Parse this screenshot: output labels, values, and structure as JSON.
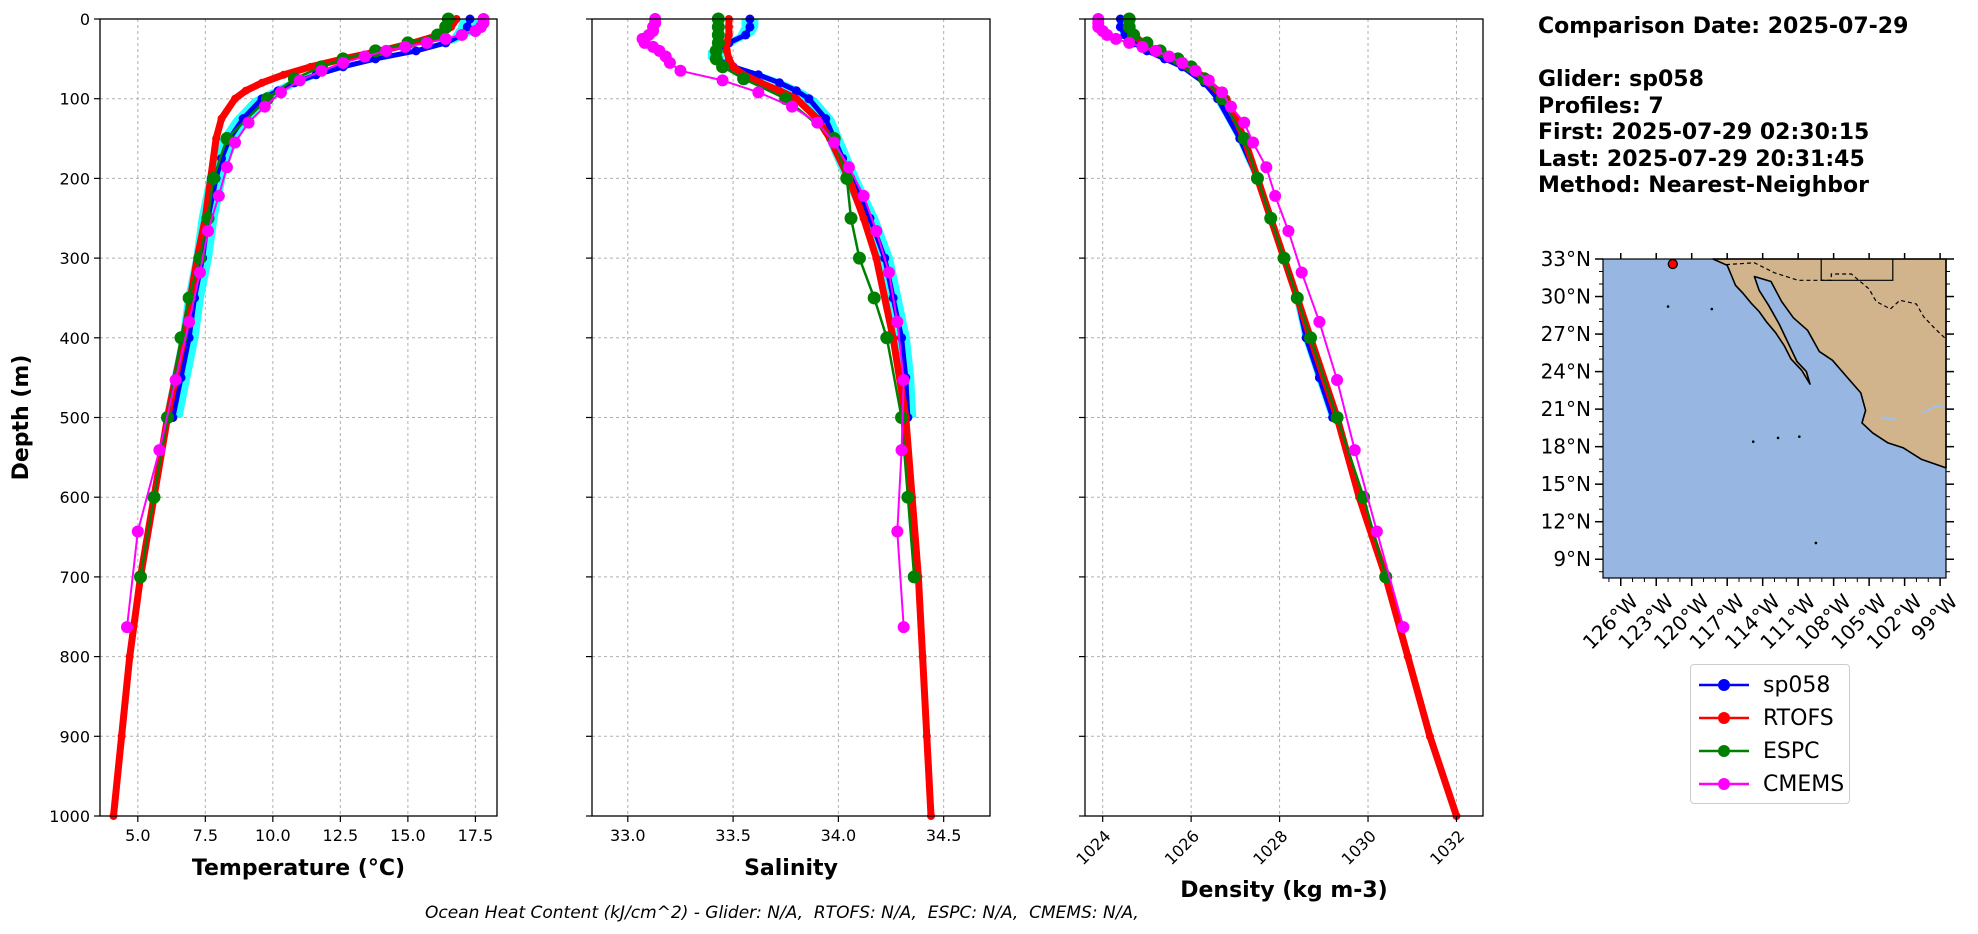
{
  "info": {
    "comparison_date": "Comparison Date: 2025-07-29",
    "glider": "Glider: sp058",
    "profiles": "Profiles: 7",
    "first": "First: 2025-07-29 02:30:15",
    "last": "Last: 2025-07-29 20:31:45",
    "method": "Method: Nearest-Neighbor"
  },
  "footer": {
    "ohc_text": "Ocean Heat Content (kJ/cm^2) - Glider: N/A,  RTOFS: N/A,  ESPC: N/A,  CMEMS: N/A,"
  },
  "colors": {
    "sp058": "#0000ff",
    "sp058_spread": "#00ffff",
    "RTOFS": "#ff0000",
    "ESPC": "#008000",
    "CMEMS": "#ff00ff",
    "ocean": "#97b6e1",
    "land": "#d2b48c"
  },
  "legend": [
    {
      "name": "sp058",
      "color": "#0000ff"
    },
    {
      "name": "RTOFS",
      "color": "#ff0000"
    },
    {
      "name": "ESPC",
      "color": "#008000"
    },
    {
      "name": "CMEMS",
      "color": "#ff00ff"
    }
  ],
  "chart_data": [
    {
      "type": "line",
      "xlabel": "Temperature (°C)",
      "ylabel": "Depth (m)",
      "xlim": [
        3.6,
        18.3
      ],
      "ylim": [
        1000,
        0
      ],
      "y_inverted": true,
      "xticks": [
        5.0,
        7.5,
        10.0,
        12.5,
        15.0,
        17.5
      ],
      "xtick_labels": [
        "5.0",
        "7.5",
        "10.0",
        "12.5",
        "15.0",
        "17.5"
      ],
      "yticks": [
        0,
        100,
        200,
        300,
        400,
        500,
        600,
        700,
        800,
        900,
        1000
      ],
      "ytick_labels": [
        "0",
        "100",
        "200",
        "300",
        "400",
        "500",
        "600",
        "700",
        "800",
        "900",
        "1000"
      ],
      "grid": true,
      "series": [
        {
          "name": "sp058",
          "depth": [
            0,
            10,
            20,
            30,
            40,
            50,
            60,
            70,
            80,
            90,
            100,
            125,
            150,
            175,
            200,
            250,
            300,
            350,
            400,
            450,
            500
          ],
          "values": [
            17.3,
            17.2,
            17.0,
            16.4,
            15.3,
            13.8,
            12.6,
            11.6,
            10.8,
            10.2,
            9.6,
            8.9,
            8.4,
            8.1,
            7.9,
            7.6,
            7.4,
            7.1,
            6.9,
            6.6,
            6.3
          ]
        },
        {
          "name": "RTOFS",
          "depth": [
            0,
            10,
            20,
            30,
            40,
            50,
            60,
            70,
            80,
            90,
            100,
            125,
            150,
            200,
            250,
            300,
            400,
            500,
            600,
            700,
            800,
            900,
            1000
          ],
          "values": [
            16.8,
            16.6,
            16.2,
            15.2,
            14.0,
            12.6,
            11.4,
            10.4,
            9.6,
            9.0,
            8.6,
            8.1,
            7.9,
            7.7,
            7.5,
            7.2,
            6.7,
            6.1,
            5.6,
            5.1,
            4.7,
            4.4,
            4.1
          ]
        },
        {
          "name": "ESPC",
          "depth": [
            0,
            10,
            20,
            30,
            40,
            50,
            60,
            75,
            100,
            150,
            200,
            250,
            300,
            350,
            400,
            500,
            600,
            700
          ],
          "values": [
            16.5,
            16.4,
            16.1,
            15.0,
            13.8,
            12.6,
            11.8,
            10.8,
            9.8,
            8.3,
            7.8,
            7.6,
            7.3,
            6.9,
            6.6,
            6.1,
            5.6,
            5.1
          ]
        },
        {
          "name": "CMEMS",
          "depth": [
            0,
            5,
            10,
            15,
            20,
            25,
            30,
            35,
            40,
            47,
            55,
            65,
            77,
            92,
            110,
            130,
            155,
            186,
            222,
            266,
            318,
            380,
            453,
            541,
            643,
            763
          ],
          "values": [
            17.8,
            17.8,
            17.7,
            17.5,
            17.0,
            16.4,
            15.7,
            14.9,
            14.2,
            13.4,
            12.6,
            11.8,
            11.0,
            10.3,
            9.7,
            9.1,
            8.6,
            8.3,
            8.0,
            7.6,
            7.3,
            6.9,
            6.4,
            5.8,
            5.0,
            4.6
          ]
        }
      ]
    },
    {
      "type": "line",
      "xlabel": "Salinity",
      "ylabel": "",
      "xlim": [
        32.83,
        34.72
      ],
      "ylim": [
        1000,
        0
      ],
      "y_inverted": true,
      "xticks": [
        33.0,
        33.5,
        34.0,
        34.5
      ],
      "xtick_labels": [
        "33.0",
        "33.5",
        "34.0",
        "34.5"
      ],
      "yticks": [
        0,
        100,
        200,
        300,
        400,
        500,
        600,
        700,
        800,
        900,
        1000
      ],
      "grid": true,
      "series": [
        {
          "name": "sp058",
          "depth": [
            0,
            10,
            20,
            30,
            40,
            50,
            60,
            70,
            80,
            90,
            100,
            125,
            150,
            175,
            200,
            250,
            300,
            350,
            400,
            450,
            500
          ],
          "values": [
            33.58,
            33.58,
            33.56,
            33.48,
            33.42,
            33.42,
            33.5,
            33.62,
            33.72,
            33.8,
            33.86,
            33.94,
            33.98,
            34.02,
            34.06,
            34.15,
            34.22,
            34.26,
            34.3,
            34.32,
            34.33
          ]
        },
        {
          "name": "RTOFS",
          "depth": [
            0,
            10,
            20,
            30,
            40,
            50,
            60,
            70,
            80,
            90,
            100,
            125,
            150,
            200,
            250,
            300,
            400,
            500,
            600,
            700,
            800,
            900,
            1000
          ],
          "values": [
            33.48,
            33.48,
            33.48,
            33.47,
            33.47,
            33.48,
            33.5,
            33.55,
            33.63,
            33.72,
            33.8,
            33.9,
            33.96,
            34.05,
            34.12,
            34.18,
            34.26,
            34.32,
            34.35,
            34.38,
            34.4,
            34.42,
            34.44
          ]
        },
        {
          "name": "ESPC",
          "depth": [
            0,
            10,
            20,
            30,
            40,
            50,
            60,
            75,
            100,
            150,
            200,
            250,
            300,
            350,
            400,
            500,
            600,
            700
          ],
          "values": [
            33.43,
            33.43,
            33.43,
            33.43,
            33.42,
            33.42,
            33.45,
            33.55,
            33.75,
            33.98,
            34.04,
            34.06,
            34.1,
            34.17,
            34.23,
            34.3,
            34.33,
            34.36
          ]
        },
        {
          "name": "CMEMS",
          "depth": [
            0,
            5,
            10,
            15,
            20,
            25,
            30,
            35,
            40,
            47,
            55,
            65,
            77,
            92,
            110,
            130,
            155,
            186,
            222,
            266,
            318,
            380,
            453,
            541,
            643,
            763
          ],
          "values": [
            33.13,
            33.13,
            33.12,
            33.12,
            33.1,
            33.07,
            33.08,
            33.12,
            33.15,
            33.18,
            33.2,
            33.25,
            33.45,
            33.62,
            33.78,
            33.9,
            33.98,
            34.05,
            34.12,
            34.18,
            34.24,
            34.28,
            34.31,
            34.3,
            34.28,
            34.31
          ]
        }
      ]
    },
    {
      "type": "line",
      "xlabel": "Density (kg m-3)",
      "ylabel": "",
      "xlim": [
        1023.6,
        1032.6
      ],
      "ylim": [
        1000,
        0
      ],
      "y_inverted": true,
      "xticks": [
        1024,
        1026,
        1028,
        1030,
        1032
      ],
      "xtick_labels": [
        "1024",
        "1026",
        "1028",
        "1030",
        "1032"
      ],
      "yticks": [
        0,
        100,
        200,
        300,
        400,
        500,
        600,
        700,
        800,
        900,
        1000
      ],
      "grid": true,
      "series": [
        {
          "name": "sp058",
          "depth": [
            0,
            10,
            20,
            30,
            40,
            50,
            60,
            80,
            100,
            150,
            200,
            250,
            300,
            350,
            400,
            450,
            500
          ],
          "values": [
            1024.4,
            1024.4,
            1024.5,
            1024.7,
            1025.0,
            1025.4,
            1025.8,
            1026.3,
            1026.6,
            1027.1,
            1027.5,
            1027.8,
            1028.1,
            1028.4,
            1028.6,
            1028.9,
            1029.2
          ]
        },
        {
          "name": "RTOFS",
          "depth": [
            0,
            10,
            20,
            30,
            40,
            50,
            60,
            70,
            80,
            90,
            100,
            125,
            150,
            200,
            250,
            300,
            400,
            500,
            600,
            700,
            800,
            900,
            1000
          ],
          "values": [
            1024.6,
            1024.6,
            1024.7,
            1024.9,
            1025.2,
            1025.6,
            1025.9,
            1026.2,
            1026.4,
            1026.6,
            1026.8,
            1027.0,
            1027.2,
            1027.5,
            1027.8,
            1028.1,
            1028.7,
            1029.3,
            1029.8,
            1030.4,
            1030.9,
            1031.4,
            1032.0
          ]
        },
        {
          "name": "ESPC",
          "depth": [
            0,
            10,
            20,
            30,
            40,
            50,
            60,
            75,
            100,
            150,
            200,
            250,
            300,
            350,
            400,
            500,
            600,
            700
          ],
          "values": [
            1024.6,
            1024.6,
            1024.7,
            1025.0,
            1025.3,
            1025.7,
            1026.0,
            1026.3,
            1026.7,
            1027.2,
            1027.5,
            1027.8,
            1028.1,
            1028.4,
            1028.7,
            1029.3,
            1029.9,
            1030.4
          ]
        },
        {
          "name": "CMEMS",
          "depth": [
            0,
            5,
            10,
            15,
            20,
            25,
            30,
            35,
            40,
            47,
            55,
            65,
            77,
            92,
            110,
            130,
            155,
            186,
            222,
            266,
            318,
            380,
            453,
            541,
            643,
            763
          ],
          "values": [
            1023.9,
            1023.9,
            1023.9,
            1024.0,
            1024.1,
            1024.3,
            1024.6,
            1024.9,
            1025.2,
            1025.5,
            1025.8,
            1026.1,
            1026.4,
            1026.7,
            1026.9,
            1027.2,
            1027.4,
            1027.7,
            1027.9,
            1028.2,
            1028.5,
            1028.9,
            1029.3,
            1029.7,
            1030.2,
            1030.8
          ]
        }
      ]
    },
    {
      "type": "map",
      "lon_range": [
        -127.5,
        -98.5
      ],
      "lat_range": [
        7.5,
        33.0
      ],
      "lat_ticks": [
        33,
        30,
        27,
        24,
        21,
        18,
        15,
        12,
        9
      ],
      "lat_tick_labels": [
        "33°N",
        "30°N",
        "27°N",
        "24°N",
        "21°N",
        "18°N",
        "15°N",
        "12°N",
        "9°N"
      ],
      "lon_ticks": [
        -126,
        -123,
        -120,
        -117,
        -114,
        -111,
        -108,
        -105,
        -102,
        -99
      ],
      "lon_tick_labels": [
        "126°W",
        "123°W",
        "120°W",
        "117°W",
        "114°W",
        "111°W",
        "108°W",
        "105°W",
        "102°W",
        "99°W"
      ],
      "glider_position": {
        "lon": -121.6,
        "lat": 32.6
      }
    }
  ]
}
